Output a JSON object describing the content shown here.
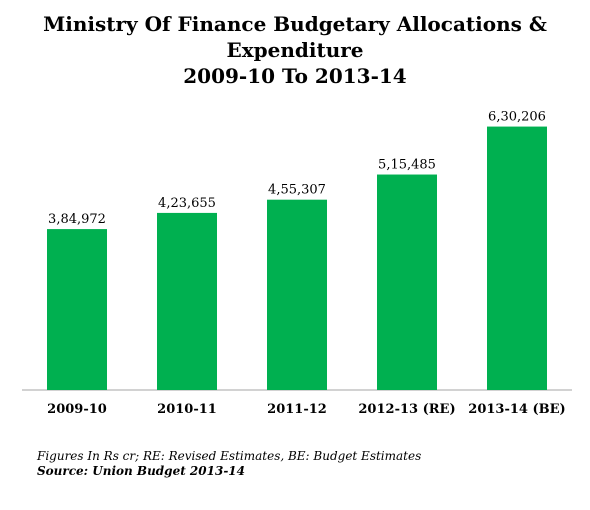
{
  "chart_data": {
    "type": "bar",
    "title_lines": [
      "Ministry Of Finance Budgetary Allocations &",
      "Expenditure",
      "2009-10 To 2013-14"
    ],
    "categories": [
      "2009-10",
      "2010-11",
      "2011-12",
      "2012-13 (RE)",
      "2013-14 (BE)"
    ],
    "values": [
      384972,
      423655,
      455307,
      515485,
      630206
    ],
    "value_labels": [
      "3,84,972",
      "4,23,655",
      "4,55,307",
      "5,15,485",
      "6,30,206"
    ],
    "ylim": [
      0,
      700000
    ],
    "grid": false,
    "legend": "none",
    "bar_color": "#00b050",
    "axis_color": "#a6a6a6"
  },
  "footer": {
    "note": "Figures In Rs cr; RE: Revised Estimates, BE: Budget Estimates",
    "source": "Source: Union Budget 2013-14"
  }
}
